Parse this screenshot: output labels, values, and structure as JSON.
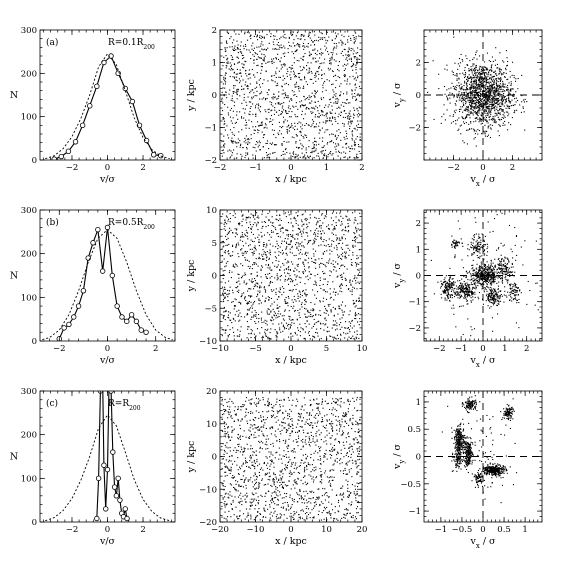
{
  "chart_data": [
    {
      "type": "line",
      "panel": "a",
      "label": "(a)",
      "radius_label": "R=0.1R",
      "radius_sub": "200",
      "xlabel": "v/σ",
      "ylabel": "N",
      "xlim": [
        -3.8,
        3.8
      ],
      "ylim": [
        0,
        300
      ],
      "xticks": [
        -2,
        0,
        2
      ],
      "yticks": [
        0,
        100,
        200,
        300
      ],
      "series": [
        {
          "style": "solid",
          "markers": true,
          "x": [
            -3.0,
            -2.6,
            -2.2,
            -1.8,
            -1.4,
            -1.0,
            -0.6,
            -0.2,
            0.2,
            0.6,
            1.0,
            1.4,
            1.8,
            2.2,
            2.6,
            3.0
          ],
          "y": [
            2,
            8,
            20,
            42,
            80,
            125,
            170,
            225,
            240,
            200,
            165,
            135,
            80,
            45,
            12,
            10
          ]
        },
        {
          "style": "dashed",
          "markers": false,
          "x": [
            -3.5,
            -3.0,
            -2.5,
            -2.0,
            -1.5,
            -1.0,
            -0.5,
            0.0,
            0.5,
            1.0,
            1.5,
            2.0,
            2.5,
            3.0,
            3.5
          ],
          "y": [
            3,
            10,
            26,
            54,
            96,
            150,
            215,
            245,
            220,
            160,
            98,
            52,
            24,
            9,
            3
          ]
        }
      ]
    },
    {
      "type": "scatter",
      "panel": "a-xy",
      "xlabel": "x / kpc",
      "ylabel": "y / kpc",
      "xlim": [
        -2,
        2
      ],
      "ylim": [
        -2,
        2
      ],
      "xticks": [
        -2,
        -1,
        0,
        1,
        2
      ],
      "yticks": [
        -2,
        -1,
        0,
        1,
        2
      ],
      "point_count": 1500,
      "distribution": {
        "kind": "uniform",
        "xrange": [
          -1.95,
          1.95
        ],
        "yrange": [
          -1.95,
          1.95
        ]
      }
    },
    {
      "type": "scatter",
      "panel": "a-v",
      "xlabel": "v_x / σ",
      "ylabel": "v_y / σ",
      "xlim": [
        -4,
        4
      ],
      "ylim": [
        -4,
        4
      ],
      "xticks": [
        -2,
        0,
        2
      ],
      "yticks": [
        -2,
        0,
        2
      ],
      "point_count": 1400,
      "distribution": {
        "kind": "gaussian",
        "clusters": [
          {
            "x": 0,
            "y": 0,
            "sx": 1.0,
            "sy": 1.0,
            "w": 1
          }
        ]
      }
    },
    {
      "type": "line",
      "panel": "b",
      "label": "(b)",
      "radius_label": "R=0.5R",
      "radius_sub": "200",
      "xlabel": "v/σ",
      "ylabel": "N",
      "xlim": [
        -2.8,
        2.8
      ],
      "ylim": [
        0,
        300
      ],
      "xticks": [
        -2,
        0,
        2
      ],
      "yticks": [
        0,
        100,
        200,
        300
      ],
      "series": [
        {
          "style": "solid",
          "markers": true,
          "x": [
            -2.0,
            -1.8,
            -1.6,
            -1.4,
            -1.2,
            -1.0,
            -0.8,
            -0.6,
            -0.4,
            -0.2,
            0.0,
            0.2,
            0.4,
            0.6,
            0.8,
            1.0,
            1.2,
            1.4,
            1.6
          ],
          "y": [
            5,
            30,
            38,
            55,
            80,
            115,
            190,
            225,
            255,
            160,
            260,
            150,
            80,
            55,
            45,
            60,
            45,
            25,
            20
          ]
        },
        {
          "style": "dashed",
          "markers": false,
          "x": [
            -2.7,
            -2.4,
            -2.0,
            -1.6,
            -1.2,
            -0.8,
            -0.4,
            0.0,
            0.4,
            0.8,
            1.2,
            1.6,
            2.0,
            2.4,
            2.7
          ],
          "y": [
            3,
            8,
            25,
            60,
            115,
            180,
            235,
            255,
            235,
            180,
            115,
            60,
            25,
            8,
            3
          ]
        }
      ]
    },
    {
      "type": "scatter",
      "panel": "b-xy",
      "xlabel": "x / kpc",
      "ylabel": "y / kpc",
      "xlim": [
        -10,
        10
      ],
      "ylim": [
        -10,
        10
      ],
      "xticks": [
        -10,
        -5,
        0,
        5,
        10
      ],
      "yticks": [
        -10,
        -5,
        0,
        5,
        10
      ],
      "point_count": 1500,
      "distribution": {
        "kind": "uniform",
        "xrange": [
          -9.7,
          9.7
        ],
        "yrange": [
          -9.7,
          9.7
        ]
      }
    },
    {
      "type": "scatter",
      "panel": "b-v",
      "xlabel": "v_x / σ",
      "ylabel": "v_y / σ",
      "xlim": [
        -2.7,
        2.7
      ],
      "ylim": [
        -2.5,
        2.5
      ],
      "xticks": [
        -2,
        -1,
        0,
        1,
        2
      ],
      "yticks": [
        -2,
        -1,
        0,
        1,
        2
      ],
      "point_count": 1300,
      "distribution": {
        "kind": "gaussian",
        "clusters": [
          {
            "x": 0.1,
            "y": 0.0,
            "sx": 0.35,
            "sy": 0.2,
            "w": 3
          },
          {
            "x": -0.8,
            "y": -0.6,
            "sx": 0.25,
            "sy": 0.2,
            "w": 1.5
          },
          {
            "x": -1.6,
            "y": -0.5,
            "sx": 0.15,
            "sy": 0.2,
            "w": 1
          },
          {
            "x": 0.5,
            "y": -0.8,
            "sx": 0.2,
            "sy": 0.15,
            "w": 1
          },
          {
            "x": 1.0,
            "y": 0.3,
            "sx": 0.2,
            "sy": 0.2,
            "w": 0.8
          },
          {
            "x": -0.2,
            "y": 1.1,
            "sx": 0.2,
            "sy": 0.25,
            "w": 0.7
          },
          {
            "x": 1.4,
            "y": -0.6,
            "sx": 0.15,
            "sy": 0.2,
            "w": 0.5
          },
          {
            "x": -1.3,
            "y": 1.2,
            "sx": 0.1,
            "sy": 0.1,
            "w": 0.3
          },
          {
            "x": 0.0,
            "y": 0.0,
            "sx": 1.2,
            "sy": 1.1,
            "w": 1.2
          }
        ]
      }
    },
    {
      "type": "line",
      "panel": "c",
      "label": "(c)",
      "radius_label": "R=R",
      "radius_sub": "200",
      "xlabel": "v/σ",
      "ylabel": "N",
      "xlim": [
        -3.8,
        3.8
      ],
      "ylim": [
        0,
        300
      ],
      "xticks": [
        -2,
        0,
        2
      ],
      "yticks": [
        0,
        100,
        200,
        300
      ],
      "series": [
        {
          "style": "solid",
          "markers": true,
          "x": [
            -0.6,
            -0.5,
            -0.4,
            -0.3,
            -0.2,
            -0.1,
            0.0,
            0.1,
            0.2,
            0.3,
            0.4,
            0.5,
            0.6,
            0.7,
            0.8,
            0.9,
            1.0,
            1.1
          ],
          "y": [
            8,
            100,
            300,
            400,
            130,
            30,
            120,
            350,
            300,
            160,
            80,
            60,
            100,
            50,
            20,
            12,
            30,
            8
          ]
        },
        {
          "style": "dashed",
          "markers": false,
          "x": [
            -3.5,
            -3.0,
            -2.5,
            -2.0,
            -1.5,
            -1.0,
            -0.5,
            0.0,
            0.5,
            1.0,
            1.5,
            2.0,
            2.5,
            3.0,
            3.5
          ],
          "y": [
            3,
            10,
            26,
            54,
            96,
            150,
            215,
            245,
            220,
            160,
            98,
            52,
            24,
            9,
            3
          ]
        }
      ]
    },
    {
      "type": "scatter",
      "panel": "c-xy",
      "xlabel": "x / kpc",
      "ylabel": "y / kpc",
      "xlim": [
        -20,
        20
      ],
      "ylim": [
        -20,
        20
      ],
      "xticks": [
        -20,
        -10,
        0,
        10,
        20
      ],
      "yticks": [
        -20,
        -10,
        0,
        10,
        20
      ],
      "point_count": 1500,
      "distribution": {
        "kind": "uniform",
        "xrange": [
          -19.5,
          19.5
        ],
        "yrange": [
          -19.5,
          18
        ]
      }
    },
    {
      "type": "scatter",
      "panel": "c-v",
      "xlabel": "v_x / σ",
      "ylabel": "v_y / σ",
      "xlim": [
        -1.4,
        1.4
      ],
      "ylim": [
        -1.2,
        1.2
      ],
      "xticks": [
        -1,
        -0.5,
        0,
        0.5,
        1
      ],
      "yticks": [
        -1,
        -0.5,
        0,
        0.5,
        1
      ],
      "point_count": 1200,
      "distribution": {
        "kind": "gaussian",
        "clusters": [
          {
            "x": -0.55,
            "y": 0.3,
            "sx": 0.06,
            "sy": 0.12,
            "w": 1.5
          },
          {
            "x": -0.35,
            "y": 0.05,
            "sx": 0.05,
            "sy": 0.12,
            "w": 1.3
          },
          {
            "x": 0.25,
            "y": -0.25,
            "sx": 0.12,
            "sy": 0.05,
            "w": 2
          },
          {
            "x": -0.3,
            "y": 0.95,
            "sx": 0.08,
            "sy": 0.06,
            "w": 0.7
          },
          {
            "x": 0.6,
            "y": 0.8,
            "sx": 0.06,
            "sy": 0.06,
            "w": 0.6
          },
          {
            "x": -0.1,
            "y": -0.4,
            "sx": 0.06,
            "sy": 0.06,
            "w": 0.4
          },
          {
            "x": -0.6,
            "y": -0.05,
            "sx": 0.05,
            "sy": 0.08,
            "w": 0.6
          },
          {
            "x": 0.0,
            "y": 0.0,
            "sx": 0.4,
            "sy": 0.4,
            "w": 0.5
          }
        ]
      }
    }
  ]
}
